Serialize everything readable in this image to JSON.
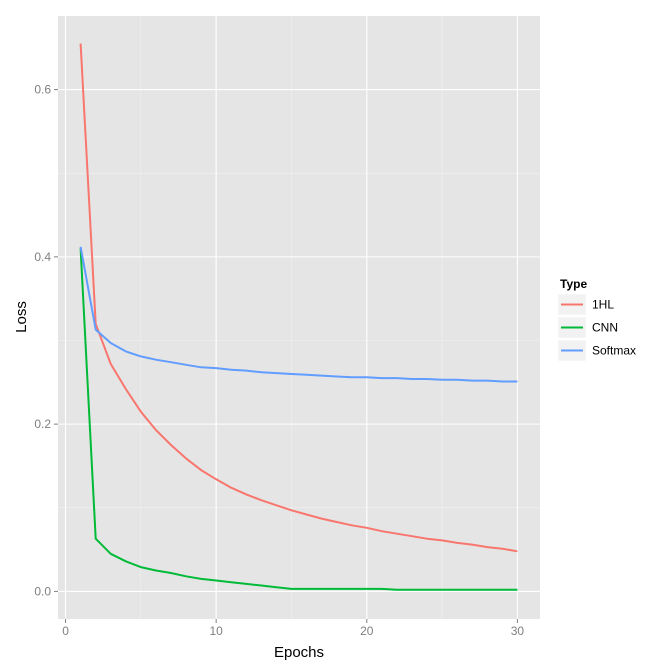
{
  "chart_data": {
    "type": "line",
    "xlabel": "Epochs",
    "ylabel": "Loss",
    "x_ticks": [
      0,
      10,
      20,
      30
    ],
    "x_tick_labels": [
      "0",
      "10",
      "20",
      "30"
    ],
    "y_ticks": [
      0.0,
      0.2,
      0.4,
      0.6
    ],
    "y_tick_labels": [
      "0.0",
      "0.2",
      "0.4",
      "0.6"
    ],
    "xlim": [
      -0.5,
      31.5
    ],
    "ylim": [
      -0.033,
      0.688
    ],
    "grid": true,
    "legend": {
      "title": "Type",
      "position": "right"
    },
    "x": [
      1,
      2,
      3,
      4,
      5,
      6,
      7,
      8,
      9,
      10,
      11,
      12,
      13,
      14,
      15,
      16,
      17,
      18,
      19,
      20,
      21,
      22,
      23,
      24,
      25,
      26,
      27,
      28,
      29,
      30
    ],
    "series": [
      {
        "name": "1HL",
        "color": "#F8766D",
        "values": [
          0.655,
          0.32,
          0.272,
          0.242,
          0.215,
          0.193,
          0.175,
          0.159,
          0.145,
          0.134,
          0.124,
          0.116,
          0.109,
          0.103,
          0.097,
          0.092,
          0.087,
          0.083,
          0.079,
          0.076,
          0.072,
          0.069,
          0.066,
          0.063,
          0.061,
          0.058,
          0.056,
          0.053,
          0.051,
          0.048
        ]
      },
      {
        "name": "CNN",
        "color": "#00BA38",
        "values": [
          0.41,
          0.063,
          0.045,
          0.036,
          0.029,
          0.025,
          0.022,
          0.018,
          0.015,
          0.013,
          0.011,
          0.009,
          0.007,
          0.005,
          0.003,
          0.003,
          0.003,
          0.003,
          0.003,
          0.003,
          0.003,
          0.002,
          0.002,
          0.002,
          0.002,
          0.002,
          0.002,
          0.002,
          0.002,
          0.002
        ]
      },
      {
        "name": "Softmax",
        "color": "#619CFF",
        "values": [
          0.412,
          0.313,
          0.297,
          0.287,
          0.281,
          0.277,
          0.274,
          0.271,
          0.268,
          0.267,
          0.265,
          0.264,
          0.262,
          0.261,
          0.26,
          0.259,
          0.258,
          0.257,
          0.256,
          0.256,
          0.255,
          0.255,
          0.254,
          0.254,
          0.253,
          0.253,
          0.252,
          0.252,
          0.251,
          0.251
        ]
      }
    ]
  }
}
